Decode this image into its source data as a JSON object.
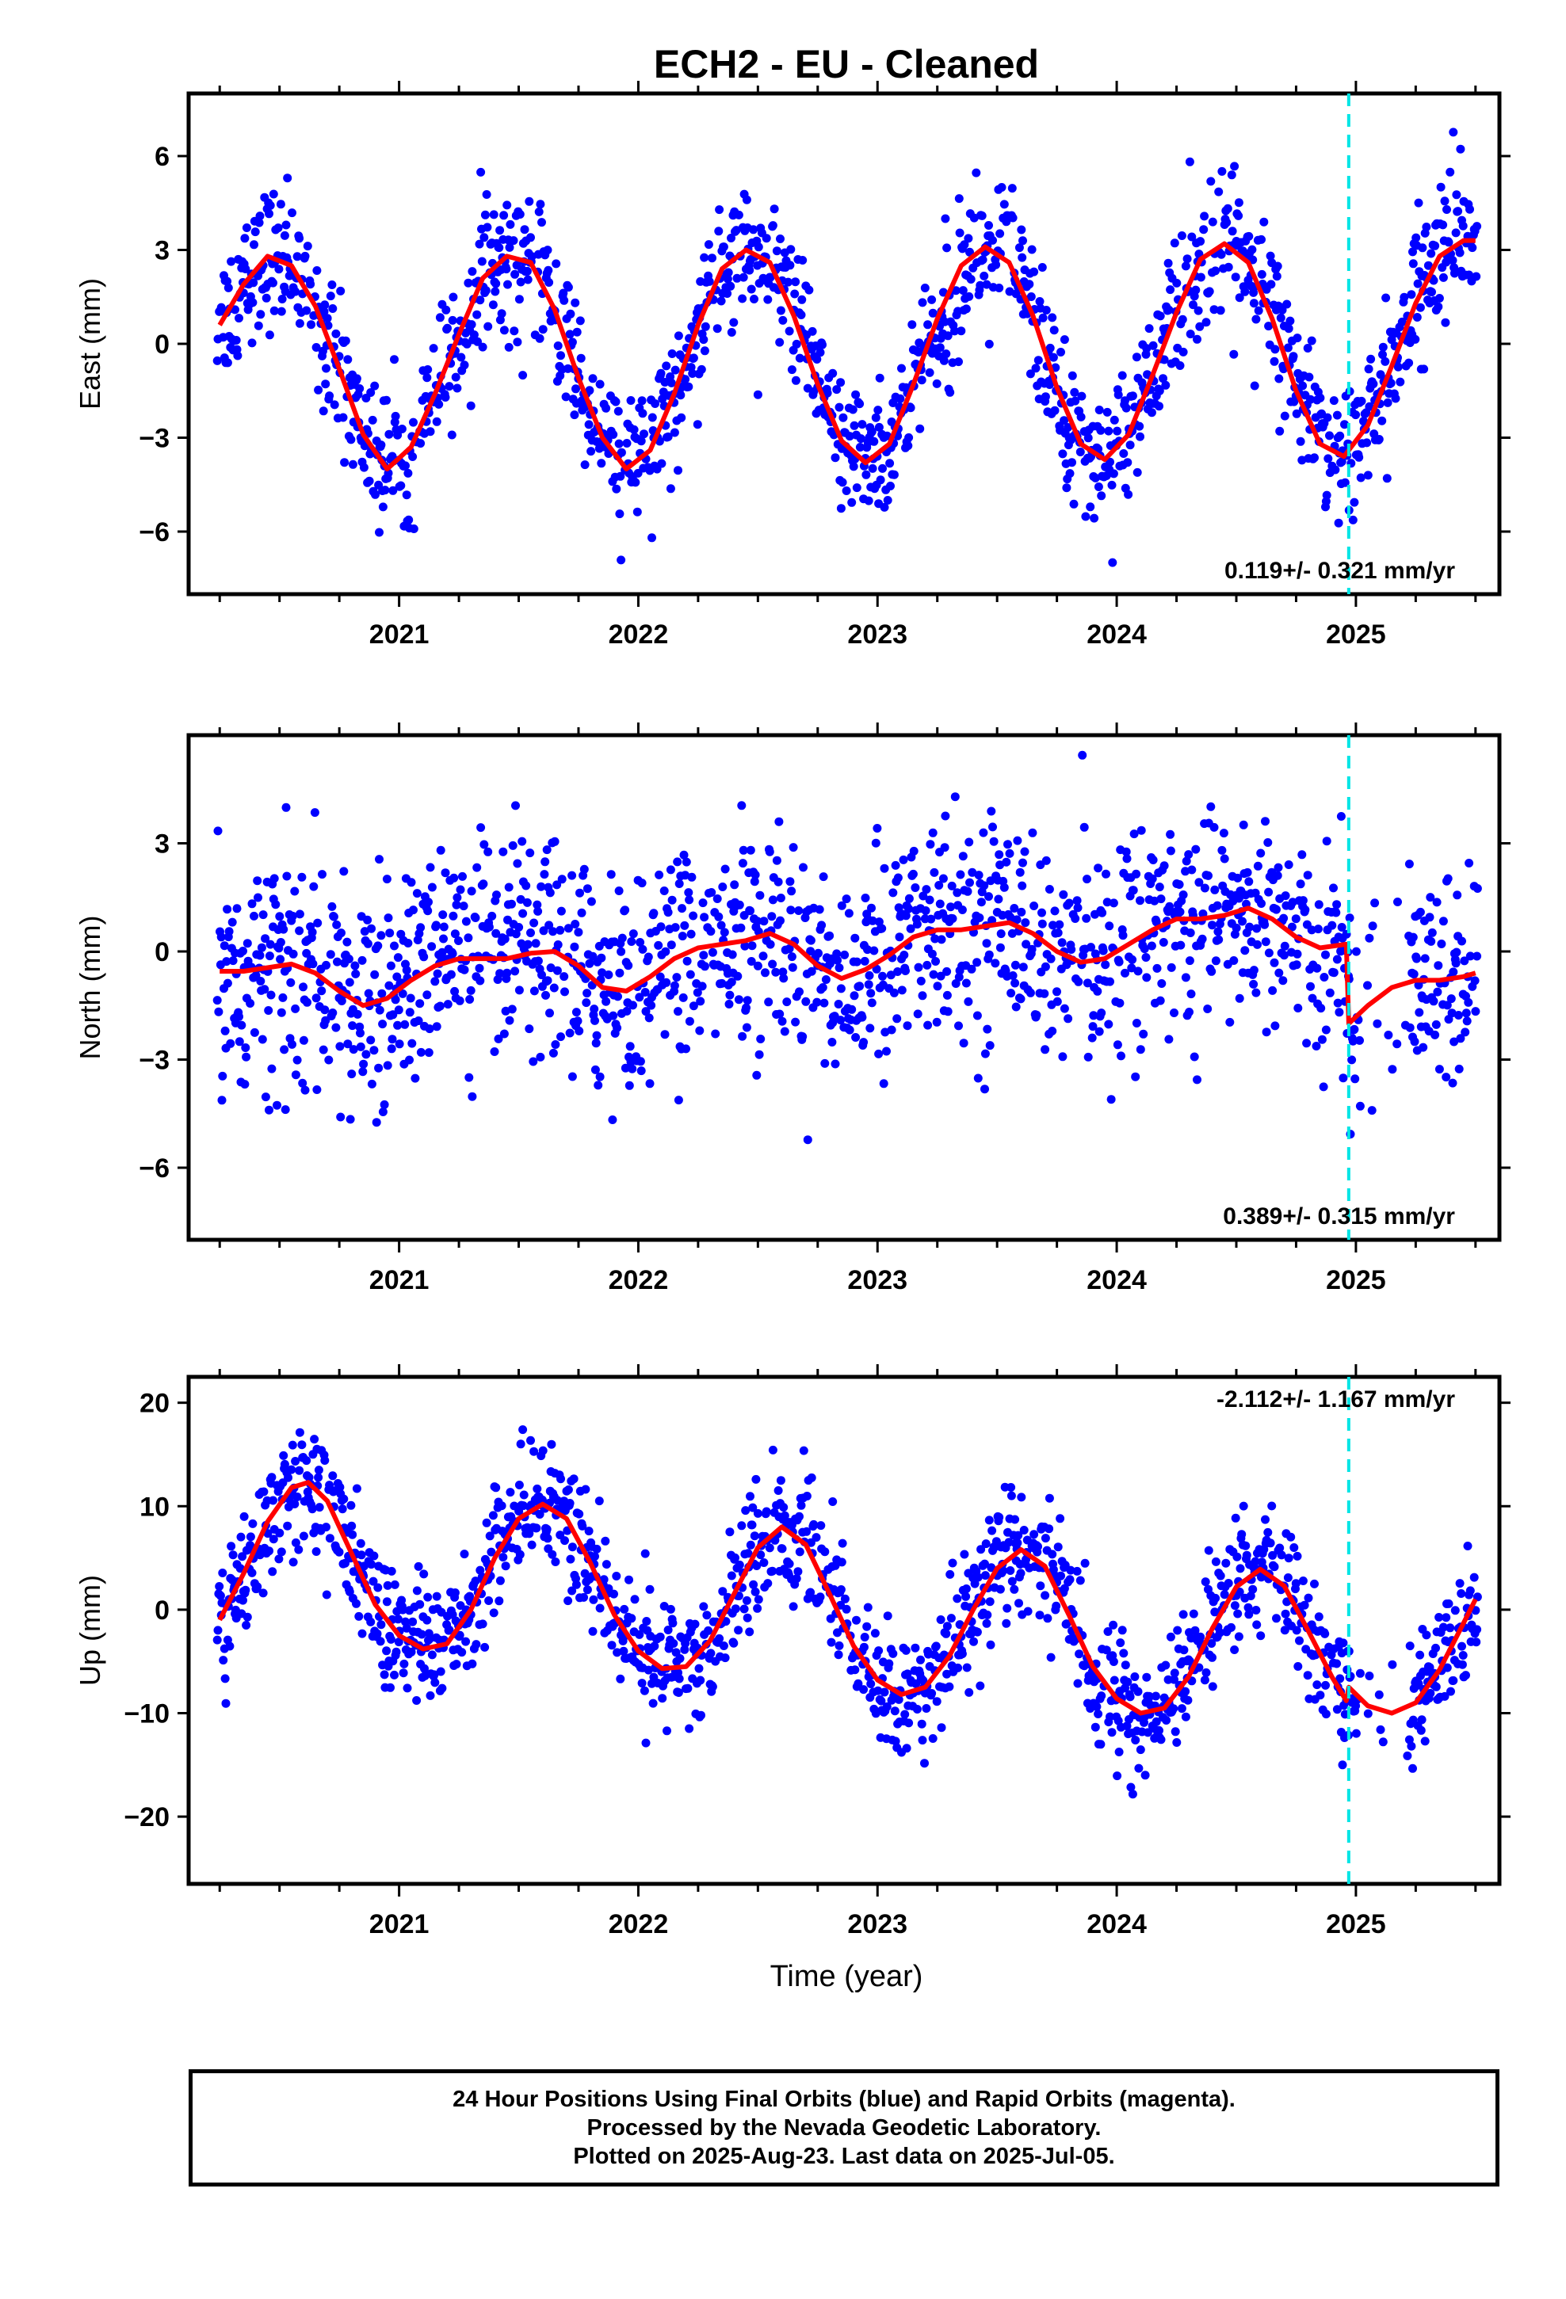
{
  "title": "ECH2  - EU - Cleaned",
  "xlabel": "Time (year)",
  "colors": {
    "points": "#0000ff",
    "fit": "#ff0000",
    "marker": "#00e5e5",
    "frame": "#000000"
  },
  "chart_data": [
    {
      "type": "scatter",
      "ylabel": "East (mm)",
      "x_ticks": [
        "2021",
        "2022",
        "2023",
        "2024",
        "2025"
      ],
      "y_ticks": [
        "6",
        "3",
        "0",
        "-3",
        "-6"
      ],
      "xlim": [
        2020.12,
        2025.6
      ],
      "ylim": [
        -8,
        8
      ],
      "annotation": "0.119+/- 0.321 mm/yr",
      "vline_x": 2024.97,
      "grid": false,
      "series": [
        {
          "values": [
            [
              2020.25,
              0.6
            ],
            [
              2020.35,
              1.9
            ],
            [
              2020.45,
              2.8
            ],
            [
              2020.55,
              2.5
            ],
            [
              2020.65,
              1.2
            ],
            [
              2020.75,
              -0.8
            ],
            [
              2020.85,
              -2.9
            ],
            [
              2020.95,
              -4.0
            ],
            [
              2021.05,
              -3.3
            ],
            [
              2021.15,
              -1.6
            ],
            [
              2021.25,
              0.3
            ],
            [
              2021.35,
              2.1
            ],
            [
              2021.45,
              2.8
            ],
            [
              2021.55,
              2.6
            ],
            [
              2021.65,
              1.1
            ],
            [
              2021.75,
              -1.1
            ],
            [
              2021.85,
              -3.0
            ],
            [
              2021.95,
              -4.0
            ],
            [
              2022.05,
              -3.4
            ],
            [
              2022.15,
              -1.6
            ],
            [
              2022.25,
              0.6
            ],
            [
              2022.35,
              2.4
            ],
            [
              2022.45,
              3.0
            ],
            [
              2022.55,
              2.6
            ],
            [
              2022.65,
              0.9
            ],
            [
              2022.75,
              -1.3
            ],
            [
              2022.85,
              -3.1
            ],
            [
              2022.95,
              -3.8
            ],
            [
              2023.05,
              -3.2
            ],
            [
              2023.15,
              -1.3
            ],
            [
              2023.25,
              0.8
            ],
            [
              2023.35,
              2.5
            ],
            [
              2023.45,
              3.1
            ],
            [
              2023.55,
              2.6
            ],
            [
              2023.65,
              0.9
            ],
            [
              2023.75,
              -1.4
            ],
            [
              2023.85,
              -3.2
            ],
            [
              2023.95,
              -3.7
            ],
            [
              2024.05,
              -2.9
            ],
            [
              2024.15,
              -1.0
            ],
            [
              2024.25,
              1.0
            ],
            [
              2024.35,
              2.7
            ],
            [
              2024.45,
              3.2
            ],
            [
              2024.55,
              2.6
            ],
            [
              2024.65,
              0.8
            ],
            [
              2024.75,
              -1.5
            ],
            [
              2024.85,
              -3.2
            ],
            [
              2024.95,
              -3.6
            ],
            [
              2025.05,
              -2.6
            ],
            [
              2025.15,
              -0.7
            ],
            [
              2025.25,
              1.3
            ],
            [
              2025.35,
              2.8
            ],
            [
              2025.45,
              3.3
            ],
            [
              2025.5,
              3.3
            ]
          ]
        }
      ]
    },
    {
      "type": "scatter",
      "ylabel": "North (mm)",
      "x_ticks": [
        "2021",
        "2022",
        "2023",
        "2024",
        "2025"
      ],
      "y_ticks": [
        "3",
        "0",
        "-3",
        "-6"
      ],
      "xlim": [
        2020.12,
        2025.6
      ],
      "ylim": [
        -8,
        6
      ],
      "annotation": "0.389+/- 0.315 mm/yr",
      "vline_x": 2024.97,
      "grid": false,
      "series": [
        {
          "values": [
            [
              2020.25,
              -0.55
            ],
            [
              2020.35,
              -0.55
            ],
            [
              2020.45,
              -0.45
            ],
            [
              2020.55,
              -0.35
            ],
            [
              2020.65,
              -0.6
            ],
            [
              2020.75,
              -1.1
            ],
            [
              2020.85,
              -1.5
            ],
            [
              2020.95,
              -1.3
            ],
            [
              2021.05,
              -0.8
            ],
            [
              2021.15,
              -0.4
            ],
            [
              2021.25,
              -0.2
            ],
            [
              2021.35,
              -0.2
            ],
            [
              2021.45,
              -0.2
            ],
            [
              2021.55,
              -0.05
            ],
            [
              2021.65,
              0.0
            ],
            [
              2021.75,
              -0.4
            ],
            [
              2021.85,
              -1.0
            ],
            [
              2021.95,
              -1.1
            ],
            [
              2022.05,
              -0.7
            ],
            [
              2022.15,
              -0.2
            ],
            [
              2022.25,
              0.1
            ],
            [
              2022.35,
              0.2
            ],
            [
              2022.45,
              0.3
            ],
            [
              2022.55,
              0.5
            ],
            [
              2022.65,
              0.2
            ],
            [
              2022.75,
              -0.4
            ],
            [
              2022.85,
              -0.75
            ],
            [
              2022.95,
              -0.5
            ],
            [
              2023.05,
              -0.1
            ],
            [
              2023.15,
              0.4
            ],
            [
              2023.25,
              0.6
            ],
            [
              2023.35,
              0.6
            ],
            [
              2023.45,
              0.7
            ],
            [
              2023.55,
              0.8
            ],
            [
              2023.65,
              0.5
            ],
            [
              2023.75,
              0.0
            ],
            [
              2023.85,
              -0.3
            ],
            [
              2023.95,
              -0.2
            ],
            [
              2024.05,
              0.2
            ],
            [
              2024.15,
              0.6
            ],
            [
              2024.25,
              0.9
            ],
            [
              2024.35,
              0.9
            ],
            [
              2024.45,
              1.0
            ],
            [
              2024.55,
              1.2
            ],
            [
              2024.65,
              0.9
            ],
            [
              2024.75,
              0.4
            ],
            [
              2024.85,
              0.1
            ],
            [
              2024.96,
              0.2
            ],
            [
              2024.97,
              -2.0
            ],
            [
              2025.05,
              -1.5
            ],
            [
              2025.15,
              -1.0
            ],
            [
              2025.25,
              -0.8
            ],
            [
              2025.35,
              -0.8
            ],
            [
              2025.45,
              -0.7
            ],
            [
              2025.5,
              -0.6
            ]
          ]
        }
      ]
    },
    {
      "type": "scatter",
      "ylabel": "Up (mm)",
      "x_ticks": [
        "2021",
        "2022",
        "2023",
        "2024",
        "2025"
      ],
      "y_ticks": [
        "20",
        "10",
        "0",
        "-10",
        "-20"
      ],
      "xlim": [
        2020.12,
        2025.6
      ],
      "ylim": [
        -26.5,
        22.5
      ],
      "annotation": "-2.112+/- 1.167 mm/yr",
      "vline_x": 2024.97,
      "grid": false,
      "series": [
        {
          "values": [
            [
              2020.25,
              -1.0
            ],
            [
              2020.35,
              3.5
            ],
            [
              2020.45,
              8.5
            ],
            [
              2020.55,
              11.8
            ],
            [
              2020.62,
              12.3
            ],
            [
              2020.7,
              10.5
            ],
            [
              2020.8,
              5.5
            ],
            [
              2020.9,
              0.5
            ],
            [
              2021.0,
              -2.5
            ],
            [
              2021.1,
              -3.8
            ],
            [
              2021.2,
              -3.3
            ],
            [
              2021.3,
              0.0
            ],
            [
              2021.4,
              5.0
            ],
            [
              2021.5,
              8.8
            ],
            [
              2021.6,
              10.2
            ],
            [
              2021.7,
              8.8
            ],
            [
              2021.8,
              4.5
            ],
            [
              2021.9,
              -0.5
            ],
            [
              2022.0,
              -4.0
            ],
            [
              2022.1,
              -5.7
            ],
            [
              2022.2,
              -5.5
            ],
            [
              2022.3,
              -3.0
            ],
            [
              2022.4,
              1.5
            ],
            [
              2022.5,
              6.0
            ],
            [
              2022.6,
              8.0
            ],
            [
              2022.7,
              6.3
            ],
            [
              2022.8,
              1.5
            ],
            [
              2022.9,
              -3.5
            ],
            [
              2023.0,
              -6.8
            ],
            [
              2023.1,
              -8.2
            ],
            [
              2023.2,
              -7.5
            ],
            [
              2023.3,
              -4.5
            ],
            [
              2023.4,
              0.0
            ],
            [
              2023.5,
              4.0
            ],
            [
              2023.6,
              5.8
            ],
            [
              2023.7,
              4.2
            ],
            [
              2023.8,
              -0.5
            ],
            [
              2023.9,
              -5.5
            ],
            [
              2024.0,
              -8.6
            ],
            [
              2024.1,
              -10.0
            ],
            [
              2024.2,
              -9.5
            ],
            [
              2024.3,
              -6.5
            ],
            [
              2024.4,
              -1.8
            ],
            [
              2024.5,
              2.2
            ],
            [
              2024.6,
              3.9
            ],
            [
              2024.7,
              2.3
            ],
            [
              2024.8,
              -2.0
            ],
            [
              2024.9,
              -6.5
            ],
            [
              2024.96,
              -8.8
            ],
            [
              2024.97,
              -7.5
            ],
            [
              2025.05,
              -9.3
            ],
            [
              2025.15,
              -10.0
            ],
            [
              2025.25,
              -9.0
            ],
            [
              2025.35,
              -5.8
            ],
            [
              2025.45,
              -1.3
            ],
            [
              2025.5,
              1.0
            ]
          ]
        }
      ]
    }
  ],
  "footer": {
    "line1": "24 Hour Positions Using Final Orbits (blue) and Rapid Orbits (magenta).",
    "line2": "Processed by the Nevada Geodetic Laboratory.",
    "line3": "Plotted on 2025-Aug-23. Last data on 2025-Jul-05."
  }
}
